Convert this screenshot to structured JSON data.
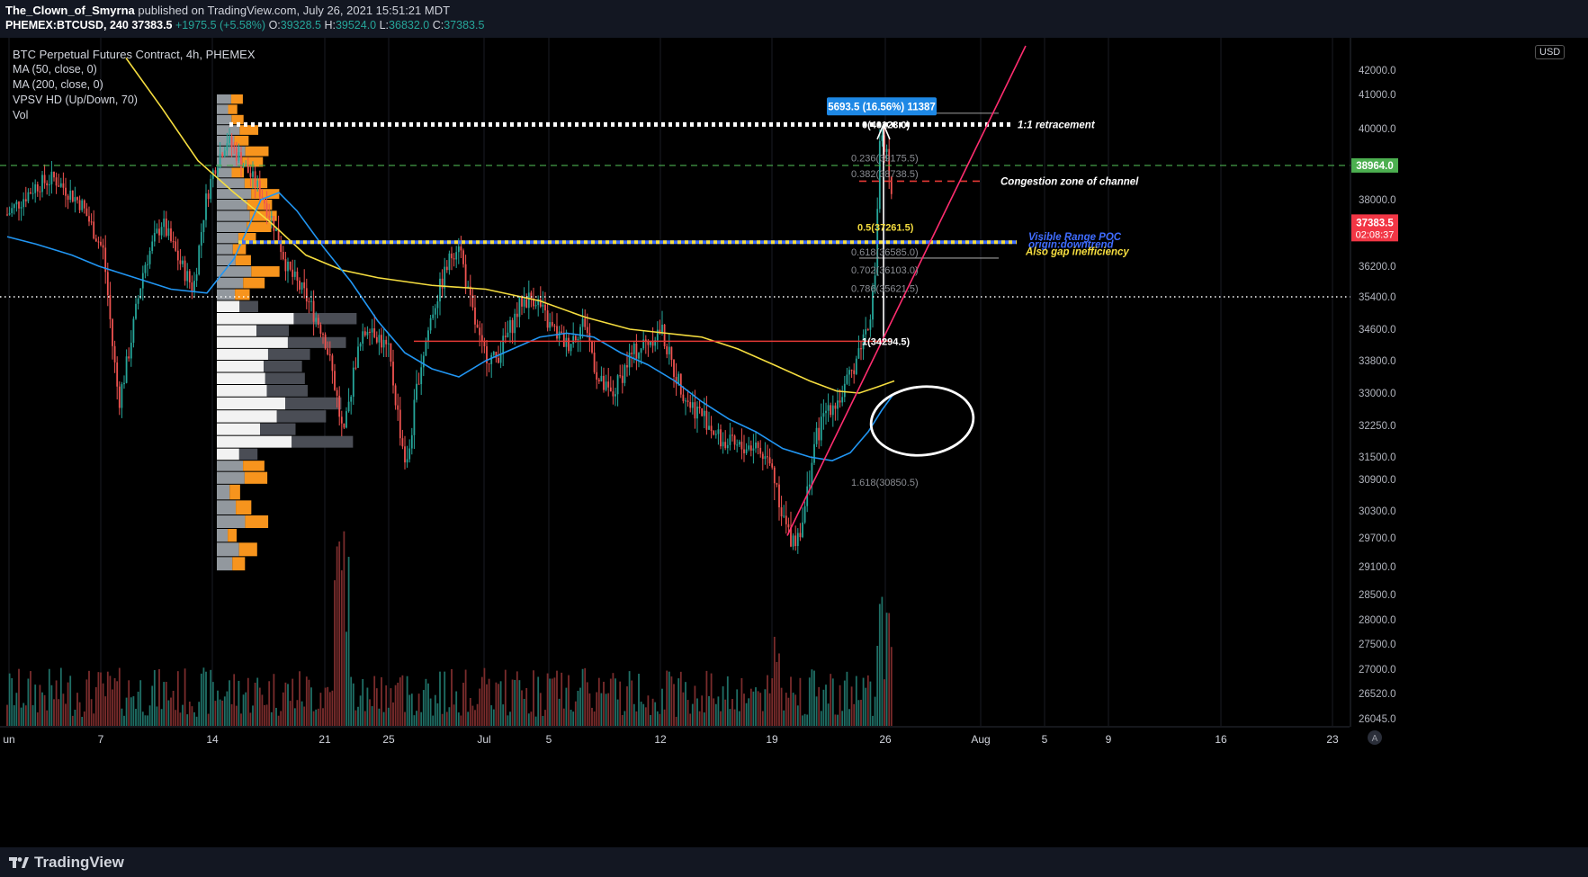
{
  "header": {
    "author": "The_Clown_of_Smyrna",
    "published": "published on TradingView.com, July 26, 2021 15:51:21 MDT",
    "symbol_line_prefix": "PHEMEX:BTCUSD, 240",
    "price": "37383.5",
    "change": "+1975.5 (+5.58%)",
    "o_label": "O:",
    "o": "39328.5",
    "h_label": "H:",
    "h": "39524.0",
    "l_label": "L:",
    "l": "36832.0",
    "c_label": "C:",
    "c": "37383.5"
  },
  "legend": {
    "title": "BTC Perpetual Futures Contract, 4h, PHEMEX",
    "ma50": "MA (50, close, 0)",
    "ma200": "MA (200, close, 0)",
    "vpsv": "VPSV HD (Up/Down, 70)",
    "vol": "Vol"
  },
  "currency": "USD",
  "footer": {
    "brand": "TradingView"
  },
  "colors": {
    "up": "#26a69a",
    "down": "#ef5350",
    "ma50": "#2196f3",
    "ma200": "#f5dd3f",
    "trendline": "#ff2d6f",
    "profile_up": "#ffffff",
    "profile_down": "#4a4d55",
    "profile_va": "#f7941d",
    "green_level": "#4caf50"
  },
  "chart_data": {
    "type": "candlestick",
    "timeframe": "4h",
    "x_ticks": [
      "un",
      "7",
      "14",
      "21",
      "25",
      "Jul",
      "5",
      "12",
      "19",
      "26",
      "Aug",
      "5",
      "9",
      "16",
      "23"
    ],
    "y_ticks": [
      42000,
      41000,
      40000,
      38000,
      36200,
      35400,
      34600,
      33800,
      33000,
      32250,
      31500,
      30900,
      30300,
      29700,
      29100,
      28500,
      28000,
      27500,
      27000,
      26520,
      26045
    ],
    "price_labels": [
      {
        "text": "38964.0",
        "value": 38964
      },
      {
        "text": "37383.5",
        "value": 37383.5
      },
      {
        "text": "02:08:37",
        "value": 37383.5
      }
    ],
    "annotations": [
      {
        "text": "1:1 retracement",
        "value": 40123
      },
      {
        "text": "Congestion zone of channel",
        "value": 38520
      },
      {
        "text": "Visible Range POC",
        "value": 37000
      },
      {
        "text": "origin:downtrend",
        "value": 36800
      },
      {
        "text": "Also gap inefficiency",
        "value": 36600
      }
    ],
    "measure_label": "5693.5 (16.56%) 11387",
    "fib_levels": [
      {
        "text": "0(40123.0)",
        "value": 40123
      },
      {
        "text": "0.236(39175.5)",
        "value": 39175.5
      },
      {
        "text": "0.382(38738.5)",
        "value": 38738.5
      },
      {
        "text": "0.5(37261.5)",
        "value": 37261.5
      },
      {
        "text": "0.618(36585.0)",
        "value": 36585
      },
      {
        "text": "0.702(36103.0)",
        "value": 36103
      },
      {
        "text": "0.786(35621.5)",
        "value": 35621.5
      },
      {
        "text": "1(34294.5)",
        "value": 34294.5
      },
      {
        "text": "1.618(30850.5)",
        "value": 30850.5
      }
    ],
    "levels": {
      "poc": 36850,
      "green_dash": 38964,
      "white_dots": 35400,
      "red_support": 34294.5
    }
  }
}
